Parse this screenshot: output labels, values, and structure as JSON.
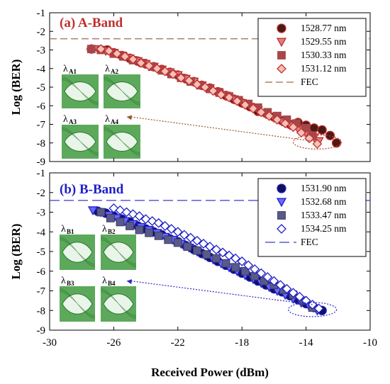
{
  "colors": {
    "a_band": "#c0302e",
    "b_band": "#1f1fc8",
    "fec_a": "#a06a52",
    "fec_b": "#3a3ac8",
    "eye": "#2e8b2e"
  },
  "chart_data": [
    {
      "type": "scatter",
      "title": "(a) A-Band",
      "xlabel": "Received Power (dBm)",
      "ylabel": "Log (BER)",
      "xlim": [
        -30,
        -10
      ],
      "ylim": [
        -9,
        -1
      ],
      "xticks": [
        "-30",
        "-26",
        "-22",
        "-18",
        "-14",
        "-10"
      ],
      "yticks": [
        "-1",
        "-2",
        "-3",
        "-4",
        "-5",
        "-6",
        "-7",
        "-8",
        "-9"
      ],
      "grid": false,
      "legend_position": "top-right",
      "fec_level": -2.4,
      "fec_label": "FEC",
      "eye_labels": [
        {
          "base": "λ",
          "sub": "A1"
        },
        {
          "base": "λ",
          "sub": "A2"
        },
        {
          "base": "λ",
          "sub": "A3"
        },
        {
          "base": "λ",
          "sub": "A4"
        }
      ],
      "series": [
        {
          "name": "1528.77 nm",
          "marker": "circle",
          "x": [
            -27.4,
            -26.4,
            -26.0,
            -25.5,
            -25.0,
            -24.5,
            -24.0,
            -23.5,
            -23.0,
            -22.5,
            -22.0,
            -21.5,
            -21.0,
            -20.5,
            -20.0,
            -19.5,
            -19.0,
            -18.5,
            -18.0,
            -17.5,
            -17.0,
            -16.5,
            -16.0,
            -15.5,
            -15.0,
            -14.5,
            -14.0,
            -13.5,
            -13.0,
            -12.5,
            -12.1
          ],
          "y": [
            -2.95,
            -3.0,
            -3.15,
            -3.3,
            -3.45,
            -3.6,
            -3.75,
            -3.9,
            -4.05,
            -4.2,
            -4.35,
            -4.55,
            -4.7,
            -4.9,
            -5.05,
            -5.25,
            -5.45,
            -5.65,
            -5.85,
            -6.05,
            -6.3,
            -6.4,
            -6.6,
            -6.8,
            -7.0,
            -6.9,
            -7.05,
            -7.2,
            -7.3,
            -7.6,
            -8.0
          ]
        },
        {
          "name": "1529.55 nm",
          "marker": "triangle-down",
          "x": [
            -27.0,
            -26.5,
            -26.0,
            -25.5,
            -25.0,
            -24.5,
            -24.0,
            -23.5,
            -23.0,
            -22.5,
            -22.0,
            -21.5,
            -21.0,
            -20.5,
            -20.0,
            -19.5,
            -19.0,
            -18.5,
            -18.0,
            -17.5,
            -17.0,
            -16.5,
            -16.0,
            -15.5,
            -15.0,
            -14.5,
            -14.0,
            -13.5,
            -13.2
          ],
          "y": [
            -2.95,
            -3.05,
            -3.15,
            -3.3,
            -3.45,
            -3.6,
            -3.75,
            -3.9,
            -4.05,
            -4.2,
            -4.35,
            -4.55,
            -4.7,
            -4.9,
            -5.05,
            -5.25,
            -5.45,
            -5.65,
            -5.85,
            -6.05,
            -6.25,
            -6.45,
            -6.65,
            -6.85,
            -7.05,
            -7.25,
            -7.45,
            -7.7,
            -7.9
          ]
        },
        {
          "name": "1530.33 nm",
          "marker": "square",
          "x": [
            -27.4,
            -26.8,
            -26.0,
            -25.4,
            -24.8,
            -24.2,
            -23.6,
            -23.0,
            -22.4,
            -21.8,
            -21.2,
            -20.6,
            -20.0,
            -19.4,
            -18.8,
            -18.2,
            -17.6,
            -17.0,
            -16.4,
            -15.8,
            -15.2,
            -14.6,
            -14.0,
            -13.6
          ],
          "y": [
            -2.95,
            -3.0,
            -3.2,
            -3.35,
            -3.55,
            -3.7,
            -3.9,
            -4.1,
            -4.3,
            -4.5,
            -4.7,
            -4.9,
            -5.1,
            -5.3,
            -5.5,
            -5.7,
            -5.9,
            -6.1,
            -6.35,
            -6.55,
            -6.75,
            -6.95,
            -7.2,
            -7.6
          ]
        },
        {
          "name": "1531.12 nm",
          "marker": "diamond",
          "x": [
            -26.8,
            -26.3,
            -25.8,
            -25.3,
            -24.8,
            -24.3,
            -23.8,
            -23.3,
            -22.8,
            -22.3,
            -21.8,
            -21.3,
            -20.8,
            -20.3,
            -19.8,
            -19.3,
            -18.8,
            -18.3,
            -17.8,
            -17.3,
            -16.8,
            -16.3,
            -15.8,
            -15.3,
            -14.8,
            -14.3,
            -13.8,
            -13.3
          ],
          "y": [
            -2.95,
            -3.05,
            -3.2,
            -3.35,
            -3.5,
            -3.7,
            -3.85,
            -4.0,
            -4.15,
            -4.3,
            -4.5,
            -4.65,
            -4.85,
            -5.0,
            -5.2,
            -5.4,
            -5.55,
            -5.75,
            -5.95,
            -6.15,
            -6.35,
            -6.55,
            -6.75,
            -6.95,
            -7.15,
            -7.45,
            -7.75,
            -8.05
          ]
        }
      ]
    },
    {
      "type": "scatter",
      "title": "(b) B-Band",
      "xlabel": "Received Power (dBm)",
      "ylabel": "Log (BER)",
      "xlim": [
        -30,
        -10
      ],
      "ylim": [
        -9,
        -1
      ],
      "xticks": [
        "-30",
        "-26",
        "-22",
        "-18",
        "-14",
        "-10"
      ],
      "yticks": [
        "-1",
        "-2",
        "-3",
        "-4",
        "-5",
        "-6",
        "-7",
        "-8",
        "-9"
      ],
      "grid": false,
      "legend_position": "top-right",
      "fec_level": -2.4,
      "fec_label": "FEC",
      "eye_labels": [
        {
          "base": "λ",
          "sub": "B1"
        },
        {
          "base": "λ",
          "sub": "B2"
        },
        {
          "base": "λ",
          "sub": "B3"
        },
        {
          "base": "λ",
          "sub": "B4"
        }
      ],
      "series": [
        {
          "name": "1531.90 nm",
          "marker": "circle",
          "x": [
            -27.0,
            -26.5,
            -26.0,
            -25.5,
            -25.0,
            -24.5,
            -24.0,
            -23.5,
            -23.0,
            -22.5,
            -22.0,
            -21.5,
            -21.0,
            -20.5,
            -20.0,
            -19.5,
            -19.0,
            -18.5,
            -18.0,
            -17.5,
            -17.0,
            -16.5,
            -16.0,
            -15.5,
            -15.0,
            -14.5,
            -14.0,
            -13.5,
            -13.0
          ],
          "y": [
            -2.95,
            -3.05,
            -3.2,
            -3.35,
            -3.5,
            -3.7,
            -3.85,
            -4.0,
            -4.15,
            -4.35,
            -4.5,
            -4.7,
            -4.9,
            -5.1,
            -5.3,
            -5.5,
            -5.7,
            -5.9,
            -6.1,
            -6.3,
            -6.5,
            -6.7,
            -6.9,
            -7.05,
            -7.25,
            -7.45,
            -7.65,
            -7.85,
            -8.0
          ]
        },
        {
          "name": "1532.68 nm",
          "marker": "triangle-down",
          "x": [
            -27.3,
            -26.8,
            -26.3,
            -25.8,
            -25.3,
            -24.8,
            -24.3,
            -23.8,
            -23.3,
            -22.8,
            -22.3,
            -21.8,
            -21.3,
            -20.8,
            -20.3,
            -19.8,
            -19.3,
            -18.8,
            -18.3,
            -17.8,
            -17.3,
            -16.8,
            -16.3,
            -15.8,
            -15.3,
            -14.8,
            -14.3,
            -13.8,
            -13.3
          ],
          "y": [
            -2.9,
            -3.0,
            -3.15,
            -3.3,
            -3.45,
            -3.6,
            -3.75,
            -3.9,
            -4.05,
            -4.25,
            -4.4,
            -4.6,
            -4.8,
            -5.0,
            -5.2,
            -5.4,
            -5.6,
            -5.8,
            -6.0,
            -6.2,
            -6.4,
            -6.6,
            -6.8,
            -7.0,
            -7.2,
            -7.4,
            -7.6,
            -7.8,
            -8.0
          ]
        },
        {
          "name": "1533.47 nm",
          "marker": "square",
          "x": [
            -26.8,
            -26.2,
            -25.6,
            -25.0,
            -24.4,
            -23.8,
            -23.2,
            -22.6,
            -22.0,
            -21.4,
            -20.8,
            -20.2,
            -19.6,
            -19.0,
            -18.4,
            -17.8,
            -17.2,
            -16.6,
            -16.0,
            -15.4,
            -14.8,
            -14.2,
            -13.6
          ],
          "y": [
            -3.0,
            -3.3,
            -3.5,
            -3.7,
            -3.9,
            -4.05,
            -4.2,
            -4.4,
            -4.55,
            -4.75,
            -4.95,
            -5.15,
            -5.35,
            -5.6,
            -5.8,
            -6.0,
            -6.25,
            -6.5,
            -6.7,
            -6.95,
            -7.2,
            -7.5,
            -7.85
          ]
        },
        {
          "name": "1534.25 nm",
          "marker": "diamond",
          "x": [
            -26.0,
            -25.6,
            -25.2,
            -24.8,
            -24.4,
            -24.0,
            -23.6,
            -23.2,
            -22.8,
            -22.4,
            -22.0,
            -21.6,
            -21.2,
            -20.8,
            -20.4,
            -20.0,
            -19.6,
            -19.2,
            -18.8,
            -18.4,
            -18.0,
            -17.6,
            -17.2,
            -16.8,
            -16.4,
            -16.0,
            -15.6,
            -15.2,
            -14.8,
            -14.4,
            -14.0,
            -13.6,
            -13.2
          ],
          "y": [
            -2.8,
            -2.9,
            -3.0,
            -3.1,
            -3.2,
            -3.35,
            -3.45,
            -3.55,
            -3.7,
            -3.85,
            -4.0,
            -4.15,
            -4.3,
            -4.45,
            -4.6,
            -4.75,
            -4.9,
            -5.05,
            -5.2,
            -5.35,
            -5.5,
            -5.7,
            -5.9,
            -6.1,
            -6.3,
            -6.5,
            -6.7,
            -6.9,
            -7.1,
            -7.3,
            -7.5,
            -7.7,
            -7.9
          ]
        }
      ]
    }
  ]
}
